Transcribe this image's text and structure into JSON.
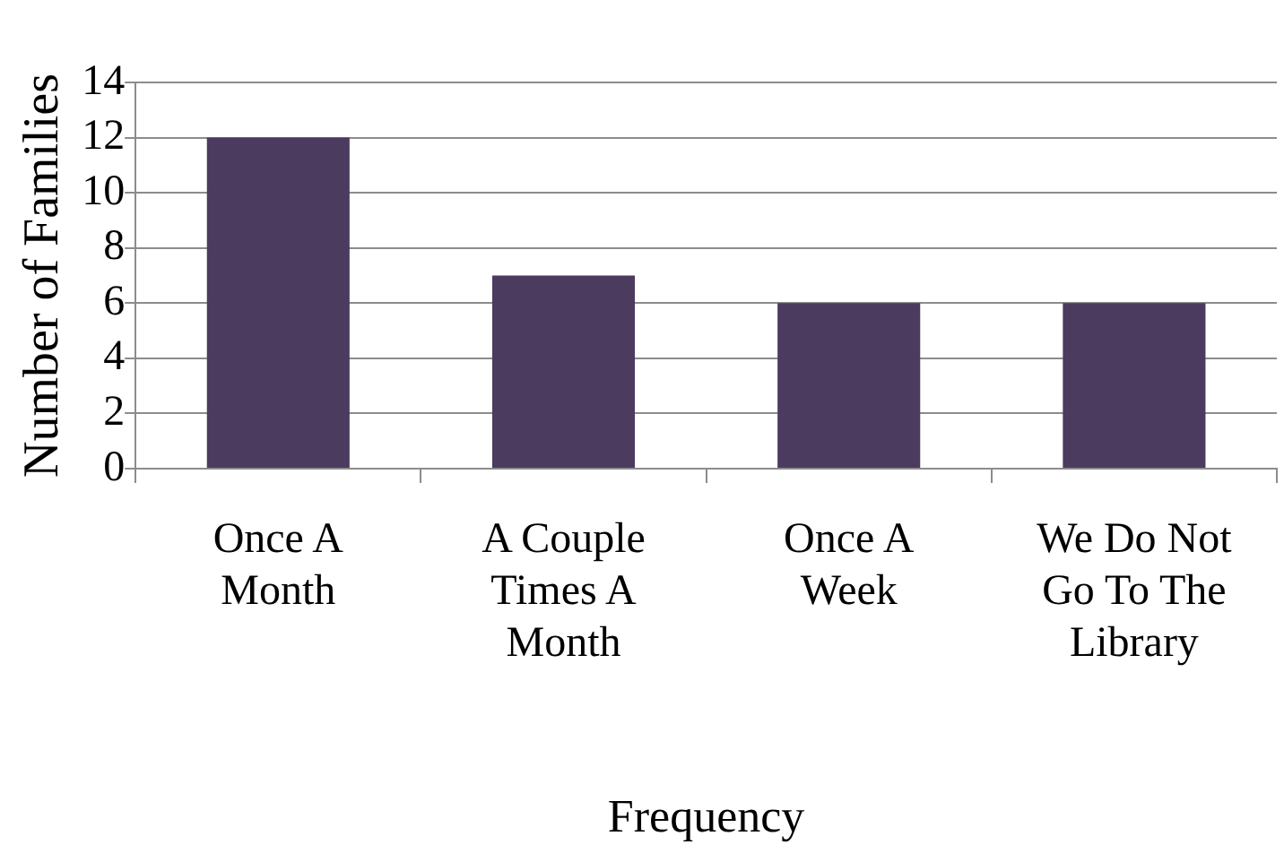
{
  "chart_data": {
    "type": "bar",
    "xlabel": "Frequency",
    "ylabel": "Number of Families",
    "categories": [
      "Once A Month",
      "A Couple Times A Month",
      "Once A Week",
      "We Do Not Go To The Library"
    ],
    "values": [
      12,
      7,
      6,
      6
    ],
    "color": "#4b3b5f",
    "ylim": [
      0,
      14
    ],
    "yticks": [
      0,
      2,
      4,
      6,
      8,
      10,
      12,
      14
    ],
    "grid": "y"
  }
}
